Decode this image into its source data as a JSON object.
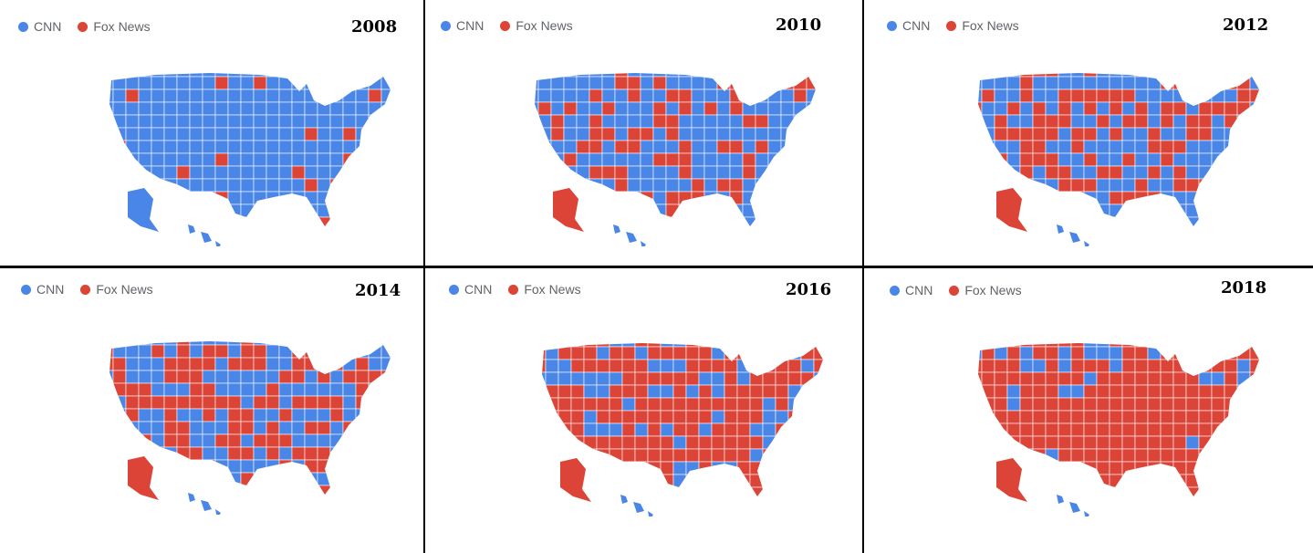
{
  "colors": {
    "cnn": "#4a86e8",
    "fox": "#db4437",
    "legend_text": "#5f6368",
    "divider": "#000000"
  },
  "legend": {
    "cnn_label": "CNN",
    "fox_label": "Fox News"
  },
  "panels": [
    {
      "year": "2008",
      "fox_share": 0.05
    },
    {
      "year": "2010",
      "fox_share": 0.3
    },
    {
      "year": "2012",
      "fox_share": 0.45
    },
    {
      "year": "2014",
      "fox_share": 0.45
    },
    {
      "year": "2016",
      "fox_share": 0.65
    },
    {
      "year": "2018",
      "fox_share": 0.85
    }
  ]
}
